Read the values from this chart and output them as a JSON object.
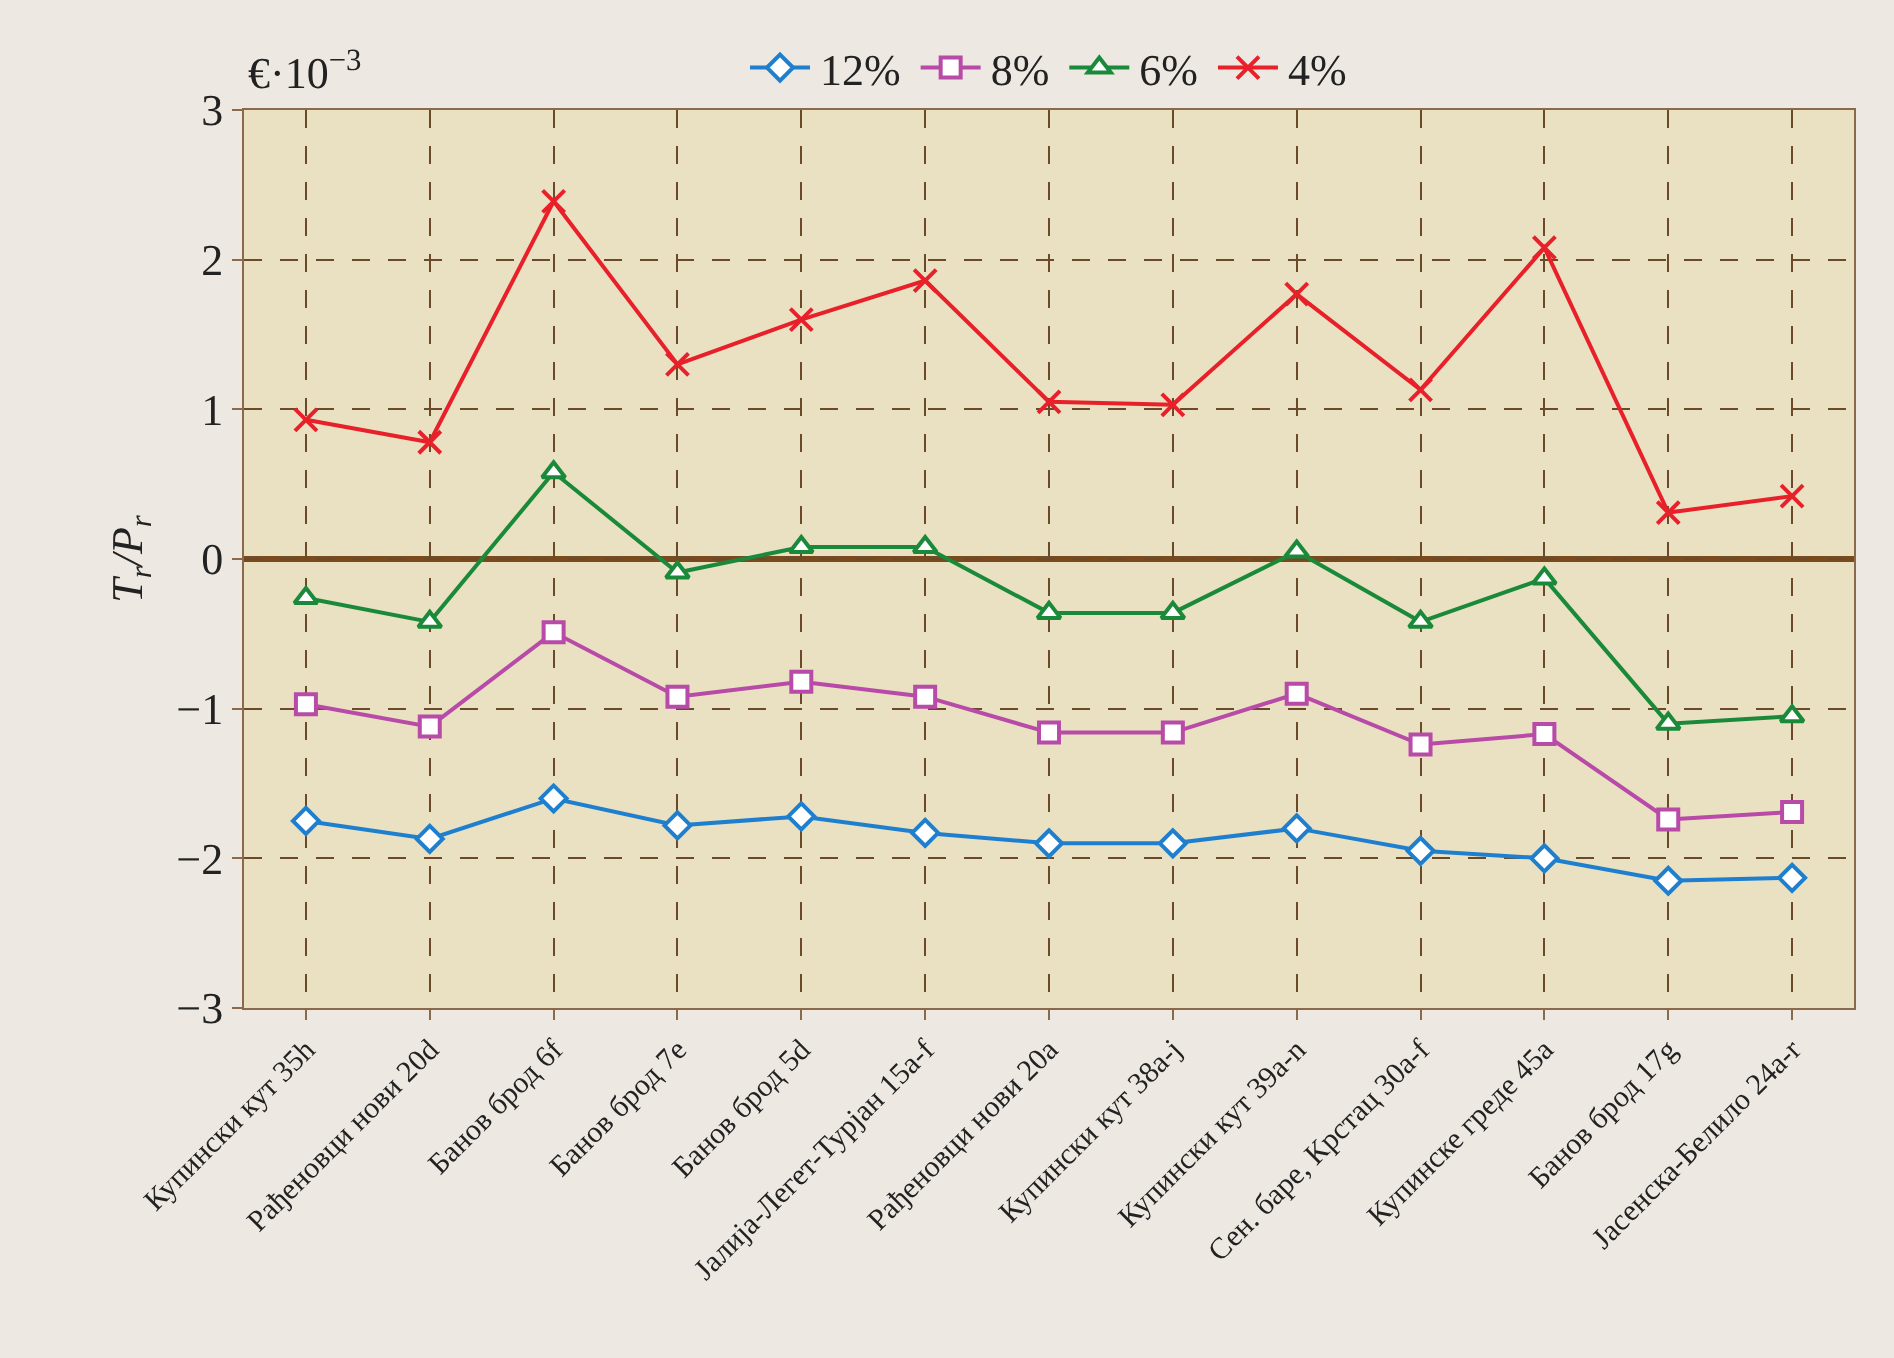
{
  "chart_data": {
    "type": "line",
    "ylabel": "T$_{r}$/P$_{r}$",
    "annotations": [
      "€·10$^{−3}$"
    ],
    "categories": [
      "Купински кут 35h",
      "Рађеновци нови 20d",
      "Банов брод 6f",
      "Банов брод 7e",
      "Банов брод 5d",
      "Јалија-Легет-Турјан 15a-f",
      "Рађеновци нови 20a",
      "Купински кут 38a-j",
      "Купински кут 39a-n",
      "Сен. баре, Крстац 30a-f",
      "Купинске греде 45a",
      "Банов брод 17g",
      "Јасенска-Белило 24a-r"
    ],
    "series": [
      {
        "name": "12%",
        "color": "#1f7fcf",
        "marker": "diamond",
        "values": [
          -1.75,
          -1.87,
          -1.6,
          -1.78,
          -1.72,
          -1.83,
          -1.9,
          -1.9,
          -1.8,
          -1.95,
          -2.0,
          -2.15,
          -2.13
        ]
      },
      {
        "name": "8%",
        "color": "#b84aa8",
        "marker": "square",
        "values": [
          -0.97,
          -1.12,
          -0.49,
          -0.92,
          -0.82,
          -0.92,
          -1.16,
          -1.16,
          -0.9,
          -1.24,
          -1.17,
          -1.74,
          -1.69
        ]
      },
      {
        "name": "6%",
        "color": "#1a8a3a",
        "marker": "triangle",
        "values": [
          -0.26,
          -0.42,
          0.58,
          -0.09,
          0.08,
          0.08,
          -0.36,
          -0.36,
          0.05,
          -0.42,
          -0.13,
          -1.1,
          -1.05
        ]
      },
      {
        "name": "4%",
        "color": "#e8202a",
        "marker": "cross",
        "values": [
          0.93,
          0.78,
          2.39,
          1.3,
          1.6,
          1.86,
          1.05,
          1.03,
          1.77,
          1.13,
          2.08,
          0.31,
          0.42
        ]
      }
    ],
    "ylim": [
      -3,
      3
    ],
    "yticks": [
      {
        "value": -3,
        "label": "−3"
      },
      {
        "value": -2,
        "label": "−2"
      },
      {
        "value": -1,
        "label": "−1"
      },
      0,
      1,
      2,
      3
    ],
    "ref_lines": [
      {
        "axis": "y",
        "value": 0,
        "color": "#7a4a1f"
      }
    ],
    "grid": true,
    "line_style": "solid",
    "legend": "top"
  }
}
